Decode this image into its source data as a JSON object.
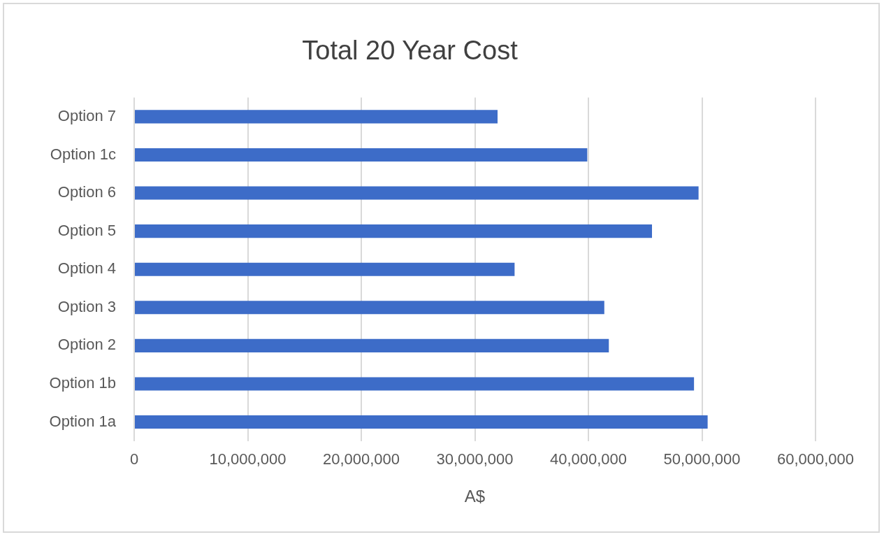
{
  "chart_data": {
    "type": "bar",
    "orientation": "horizontal",
    "title": "Total 20 Year Cost",
    "xlabel": "A$",
    "categories": [
      "Option 7",
      "Option 1c",
      "Option 6",
      "Option 5",
      "Option 4",
      "Option 3",
      "Option 2",
      "Option 1b",
      "Option 1a"
    ],
    "values": [
      32000000,
      39900000,
      49700000,
      45600000,
      33500000,
      41400000,
      41800000,
      49300000,
      50500000
    ],
    "color": "#3d6cc8",
    "xlim": [
      0,
      60000000
    ],
    "xticks": [
      {
        "value": 0,
        "label": "0"
      },
      {
        "value": 10000000,
        "label": "10,000,000"
      },
      {
        "value": 20000000,
        "label": "20,000,000"
      },
      {
        "value": 30000000,
        "label": "30,000,000"
      },
      {
        "value": 40000000,
        "label": "40,000,000"
      },
      {
        "value": 50000000,
        "label": "50,000,000"
      },
      {
        "value": 60000000,
        "label": "60,000,000"
      }
    ],
    "grid": "x",
    "legend": false
  }
}
